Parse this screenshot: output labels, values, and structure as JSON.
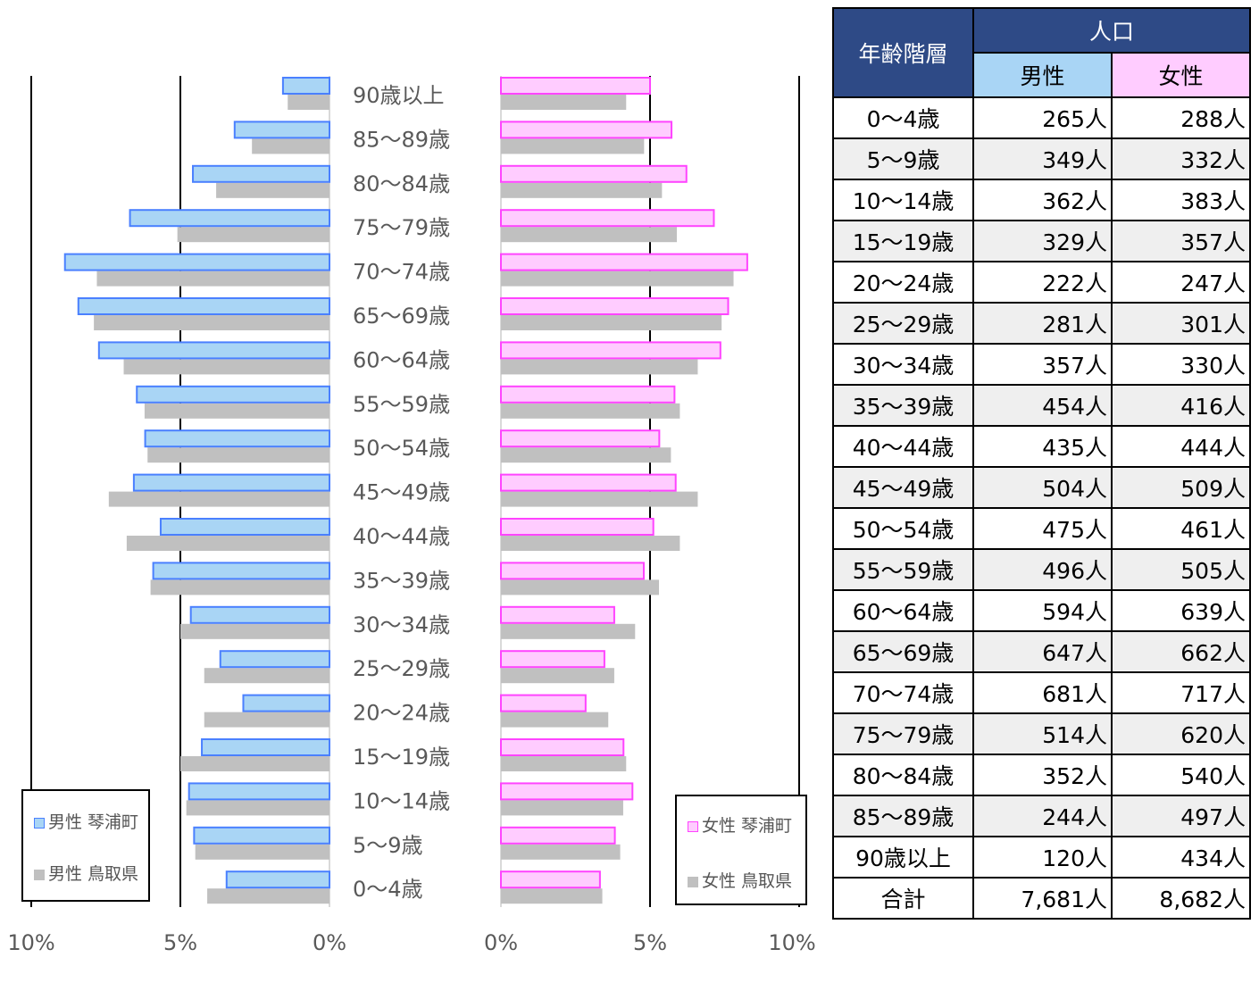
{
  "chart_data": [
    {
      "type": "bar",
      "orientation": "horizontal",
      "layout": "population-pyramid",
      "categories": [
        "90歳以上",
        "85～89歳",
        "80～84歳",
        "75～79歳",
        "70～74歳",
        "65～69歳",
        "60～64歳",
        "55～59歳",
        "50～54歳",
        "45～49歳",
        "40～44歳",
        "35～39歳",
        "30～34歳",
        "25～29歳",
        "20～24歳",
        "15～19歳",
        "10～14歳",
        "5～9歳",
        "0～4歳"
      ],
      "left_axis": {
        "ticks": [
          "10%",
          "5%",
          "0%"
        ],
        "range": [
          10,
          0
        ]
      },
      "right_axis": {
        "ticks": [
          "0%",
          "5%",
          "10%"
        ],
        "range": [
          0,
          10
        ]
      },
      "series": [
        {
          "name": "男性 琴浦町",
          "side": "left",
          "color": "#a9d5f5",
          "edge": "#4a80ff",
          "values": [
            1.56,
            3.18,
            4.58,
            6.69,
            8.87,
            8.42,
            7.73,
            6.46,
            6.18,
            6.56,
            5.66,
            5.91,
            4.65,
            3.66,
            2.89,
            4.28,
            4.71,
            4.54,
            3.45
          ]
        },
        {
          "name": "男性 鳥取県",
          "side": "left",
          "color": "#c0c0c0",
          "values": [
            1.4,
            2.6,
            3.8,
            5.1,
            7.8,
            7.9,
            6.9,
            6.2,
            6.1,
            7.4,
            6.8,
            6.0,
            5.0,
            4.2,
            4.2,
            5.0,
            4.8,
            4.5,
            4.1
          ]
        },
        {
          "name": "女性 琴浦町",
          "side": "right",
          "color": "#ffccff",
          "edge": "#ff44ff",
          "values": [
            5.0,
            5.72,
            6.22,
            7.14,
            8.26,
            7.62,
            7.36,
            5.82,
            5.31,
            5.86,
            5.11,
            4.79,
            3.8,
            3.47,
            2.84,
            4.11,
            4.41,
            3.82,
            3.32
          ]
        },
        {
          "name": "女性 鳥取県",
          "side": "right",
          "color": "#c0c0c0",
          "values": [
            4.2,
            4.8,
            5.4,
            5.9,
            7.8,
            7.4,
            6.6,
            6.0,
            5.7,
            6.6,
            6.0,
            5.3,
            4.5,
            3.8,
            3.6,
            4.2,
            4.1,
            4.0,
            3.4
          ]
        }
      ]
    },
    {
      "type": "table",
      "header": {
        "age": "年齢階層",
        "group": "人口",
        "male": "男性",
        "female": "女性"
      },
      "rows": [
        {
          "age": "0～4歳",
          "male": "265人",
          "female": "288人"
        },
        {
          "age": "5～9歳",
          "male": "349人",
          "female": "332人"
        },
        {
          "age": "10～14歳",
          "male": "362人",
          "female": "383人"
        },
        {
          "age": "15～19歳",
          "male": "329人",
          "female": "357人"
        },
        {
          "age": "20～24歳",
          "male": "222人",
          "female": "247人"
        },
        {
          "age": "25～29歳",
          "male": "281人",
          "female": "301人"
        },
        {
          "age": "30～34歳",
          "male": "357人",
          "female": "330人"
        },
        {
          "age": "35～39歳",
          "male": "454人",
          "female": "416人"
        },
        {
          "age": "40～44歳",
          "male": "435人",
          "female": "444人"
        },
        {
          "age": "45～49歳",
          "male": "504人",
          "female": "509人"
        },
        {
          "age": "50～54歳",
          "male": "475人",
          "female": "461人"
        },
        {
          "age": "55～59歳",
          "male": "496人",
          "female": "505人"
        },
        {
          "age": "60～64歳",
          "male": "594人",
          "female": "639人"
        },
        {
          "age": "65～69歳",
          "male": "647人",
          "female": "662人"
        },
        {
          "age": "70～74歳",
          "male": "681人",
          "female": "717人"
        },
        {
          "age": "75～79歳",
          "male": "514人",
          "female": "620人"
        },
        {
          "age": "80～84歳",
          "male": "352人",
          "female": "540人"
        },
        {
          "age": "85～89歳",
          "male": "244人",
          "female": "497人"
        },
        {
          "age": "90歳以上",
          "male": "120人",
          "female": "434人"
        }
      ],
      "total": {
        "age": "合計",
        "male": "7,681人",
        "female": "8,682人"
      }
    }
  ]
}
